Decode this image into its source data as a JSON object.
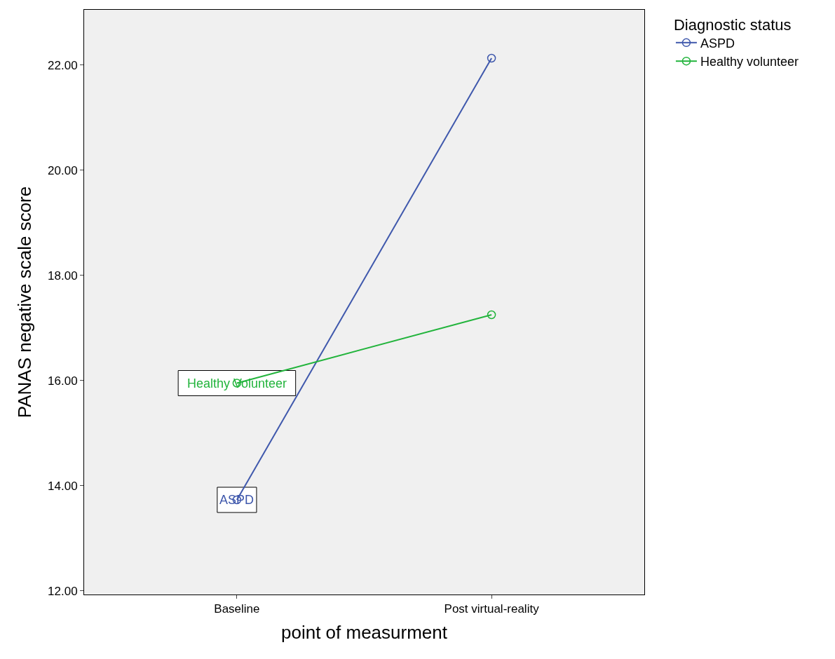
{
  "chart_data": {
    "type": "line",
    "xlabel": "point of measurment",
    "ylabel": "PANAS negative scale score",
    "legend_title": "Diagnostic status",
    "categories": [
      "Baseline",
      "Post virtual-reality"
    ],
    "series": [
      {
        "name": "ASPD",
        "color": "#3f58ac",
        "values": [
          13.73,
          22.13
        ]
      },
      {
        "name": "Healthy volunteer",
        "color": "#22b43c",
        "values": [
          15.95,
          17.25
        ]
      }
    ],
    "annotations": [
      {
        "text": "Healthy Volunteer",
        "x": "Baseline",
        "y": 15.95
      },
      {
        "text": "ASPD",
        "x": "Baseline",
        "y": 13.73
      }
    ],
    "ylim": [
      11.93,
      23.05
    ],
    "yticks": [
      {
        "value": 12,
        "label": "12.00"
      },
      {
        "value": 14,
        "label": "14.00"
      },
      {
        "value": 16,
        "label": "16.00"
      },
      {
        "value": 18,
        "label": "18.00"
      },
      {
        "value": 20,
        "label": "20.00"
      },
      {
        "value": 22,
        "label": "22.00"
      }
    ],
    "marker": "circle",
    "legend": "top right",
    "grid": false
  }
}
